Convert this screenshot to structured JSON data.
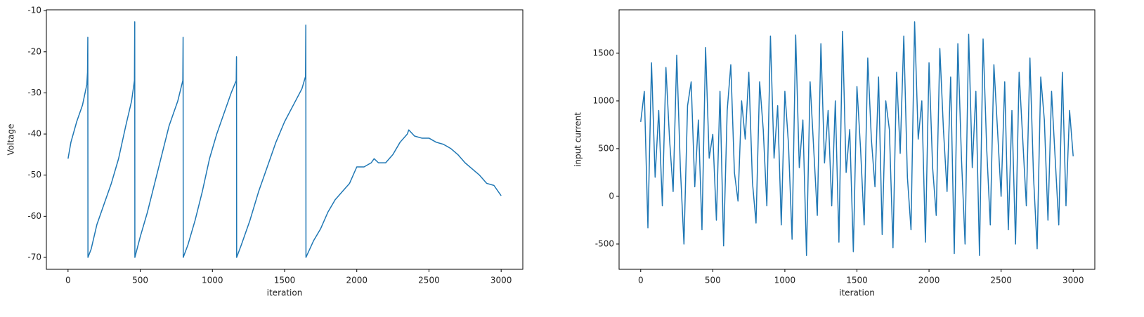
{
  "chart_data": [
    {
      "type": "line",
      "xlabel": "iteration",
      "ylabel": "Voltage",
      "color": "#1f77b4",
      "x": [
        0,
        20,
        60,
        100,
        130,
        135,
        137,
        138,
        160,
        200,
        250,
        300,
        350,
        400,
        440,
        460,
        462,
        463,
        500,
        550,
        600,
        650,
        700,
        760,
        795,
        797,
        798,
        830,
        880,
        930,
        980,
        1030,
        1080,
        1130,
        1165,
        1167,
        1168,
        1200,
        1260,
        1320,
        1380,
        1440,
        1500,
        1560,
        1620,
        1645,
        1647,
        1648,
        1700,
        1750,
        1800,
        1850,
        1900,
        1950,
        2000,
        2050,
        2100,
        2120,
        2150,
        2200,
        2250,
        2300,
        2350,
        2360,
        2400,
        2450,
        2500,
        2550,
        2600,
        2650,
        2700,
        2750,
        2800,
        2850,
        2900,
        2950,
        3000
      ],
      "values": [
        -46,
        -42,
        -37,
        -33,
        -28,
        -25,
        -16.5,
        -70,
        -68,
        -62,
        -57,
        -52,
        -46,
        -38,
        -32,
        -27,
        -12.7,
        -70,
        -65,
        -59,
        -52,
        -45,
        -38,
        -32,
        -27,
        -16.5,
        -70,
        -67,
        -61,
        -54,
        -46,
        -40,
        -35,
        -30,
        -27,
        -21.2,
        -70,
        -67,
        -61,
        -54,
        -48,
        -42,
        -37,
        -33,
        -29,
        -26,
        -13.5,
        -70,
        -66,
        -63,
        -59,
        -56,
        -54,
        -52,
        -48,
        -48,
        -47,
        -46,
        -47,
        -47,
        -45,
        -42,
        -40,
        -39,
        -40.5,
        -41,
        -41,
        -42,
        -42.5,
        -43.5,
        -45,
        -47,
        -48.5,
        -50,
        -52,
        -52.5,
        -55
      ],
      "xlim": [
        -150,
        3150
      ],
      "ylim": [
        -72.9,
        -9.8
      ],
      "xticks": [
        0,
        500,
        1000,
        1500,
        2000,
        2500,
        3000
      ],
      "yticks": [
        -70,
        -60,
        -50,
        -40,
        -30,
        -20,
        -10
      ]
    },
    {
      "type": "line",
      "xlabel": "iteration",
      "ylabel": "input current",
      "color": "#1f77b4",
      "x": [
        0,
        25,
        50,
        75,
        100,
        125,
        150,
        175,
        200,
        225,
        250,
        275,
        300,
        325,
        350,
        375,
        400,
        425,
        450,
        475,
        500,
        525,
        550,
        575,
        600,
        625,
        650,
        675,
        700,
        725,
        750,
        775,
        800,
        825,
        850,
        875,
        900,
        925,
        950,
        975,
        1000,
        1025,
        1050,
        1075,
        1100,
        1125,
        1150,
        1175,
        1200,
        1225,
        1250,
        1275,
        1300,
        1325,
        1350,
        1375,
        1400,
        1425,
        1450,
        1475,
        1500,
        1525,
        1550,
        1575,
        1600,
        1625,
        1650,
        1675,
        1700,
        1725,
        1750,
        1775,
        1800,
        1825,
        1850,
        1875,
        1900,
        1925,
        1950,
        1975,
        2000,
        2025,
        2050,
        2075,
        2100,
        2125,
        2150,
        2175,
        2200,
        2225,
        2250,
        2275,
        2300,
        2325,
        2350,
        2375,
        2400,
        2425,
        2450,
        2475,
        2500,
        2525,
        2550,
        2575,
        2600,
        2625,
        2650,
        2675,
        2700,
        2725,
        2750,
        2775,
        2800,
        2825,
        2850,
        2875,
        2900,
        2925,
        2950,
        2975,
        3000
      ],
      "values": [
        780,
        1100,
        -330,
        1400,
        200,
        900,
        -100,
        1350,
        600,
        50,
        1480,
        300,
        -500,
        950,
        1200,
        100,
        800,
        -350,
        1560,
        400,
        650,
        -250,
        1100,
        -520,
        900,
        1380,
        250,
        -50,
        1000,
        600,
        1300,
        150,
        -280,
        1200,
        700,
        -100,
        1680,
        400,
        950,
        -300,
        1100,
        550,
        -450,
        1690,
        300,
        800,
        -620,
        1200,
        500,
        -200,
        1600,
        350,
        900,
        -100,
        1000,
        -480,
        1730,
        250,
        700,
        -580,
        1150,
        500,
        -300,
        1450,
        600,
        100,
        1250,
        -400,
        1000,
        700,
        -540,
        1300,
        450,
        1680,
        200,
        -350,
        1830,
        600,
        1000,
        -480,
        1400,
        300,
        -200,
        1550,
        700,
        50,
        1250,
        -600,
        1600,
        400,
        -500,
        1700,
        300,
        1100,
        -620,
        1650,
        500,
        -300,
        1380,
        700,
        0,
        1200,
        -350,
        900,
        -500,
        1300,
        600,
        -100,
        1450,
        200,
        -550,
        1250,
        800,
        -250,
        1100,
        400,
        -300,
        1300,
        -100,
        900,
        420
      ],
      "xlim": [
        -150,
        3150
      ],
      "ylim": [
        -765,
        1955
      ],
      "xticks": [
        0,
        500,
        1000,
        1500,
        2000,
        2500,
        3000
      ],
      "yticks": [
        -500,
        0,
        500,
        1000,
        1500
      ]
    }
  ]
}
